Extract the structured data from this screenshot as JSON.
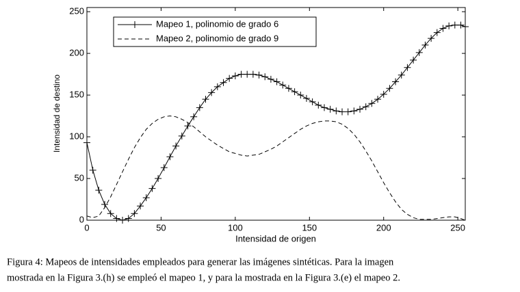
{
  "chart_data": {
    "type": "line",
    "xlabel": "Intensidad de origen",
    "ylabel": "Intensidad de destino",
    "caption": [
      "Figura 4:  Mapeos de intensidades empleados para generar las imágenes sintéticas.  Para la imagen",
      "mostrada en la Figura 3.(h) se empleó el mapeo 1, y para la mostrada en la Figura 3.(e) el mapeo 2."
    ],
    "xlim": [
      0,
      255
    ],
    "ylim": [
      0,
      255
    ],
    "xticks": [
      0,
      50,
      100,
      150,
      200,
      250
    ],
    "yticks": [
      0,
      50,
      100,
      150,
      200,
      250
    ],
    "legend": "upper left",
    "x": [
      0,
      4,
      8,
      12,
      16,
      20,
      24,
      28,
      32,
      36,
      40,
      44,
      48,
      52,
      56,
      60,
      64,
      68,
      72,
      76,
      80,
      84,
      88,
      92,
      96,
      100,
      104,
      108,
      112,
      116,
      120,
      124,
      128,
      132,
      136,
      140,
      144,
      148,
      152,
      156,
      160,
      164,
      168,
      172,
      176,
      180,
      184,
      188,
      192,
      196,
      200,
      204,
      208,
      212,
      216,
      220,
      224,
      228,
      232,
      236,
      240,
      244,
      248,
      252,
      255
    ],
    "series": [
      {
        "name": "Mapeo 1, polinomio de grado 6",
        "color": "#000000",
        "style": "solid",
        "marker": "+",
        "values": [
          93,
          60,
          36,
          19,
          8,
          2,
          0,
          2,
          8,
          17,
          27,
          38,
          50,
          63,
          76,
          89,
          101,
          113,
          124,
          135,
          145,
          153,
          160,
          165,
          170,
          173,
          175,
          175,
          175,
          174,
          172,
          169,
          166,
          162,
          158,
          154,
          150,
          146,
          142,
          138,
          135,
          133,
          131,
          130,
          130,
          131,
          133,
          136,
          140,
          145,
          151,
          158,
          166,
          174,
          183,
          192,
          201,
          210,
          218,
          225,
          230,
          233,
          234,
          234,
          232
        ]
      },
      {
        "name": "Mapeo 2, polinomio de grado 9",
        "color": "#000000",
        "style": "dashed",
        "values": [
          5,
          3,
          5,
          15,
          28,
          43,
          58,
          73,
          87,
          99,
          109,
          116,
          121,
          124,
          125,
          124,
          121,
          117,
          112,
          106,
          100,
          95,
          90,
          86,
          82,
          80,
          78,
          77,
          78,
          79,
          82,
          85,
          89,
          94,
          99,
          104,
          109,
          113,
          116,
          118,
          119,
          119,
          118,
          115,
          110,
          103,
          94,
          83,
          71,
          58,
          45,
          33,
          22,
          13,
          7,
          3,
          1,
          1,
          1,
          2,
          3,
          4,
          4,
          2,
          0
        ]
      }
    ]
  }
}
